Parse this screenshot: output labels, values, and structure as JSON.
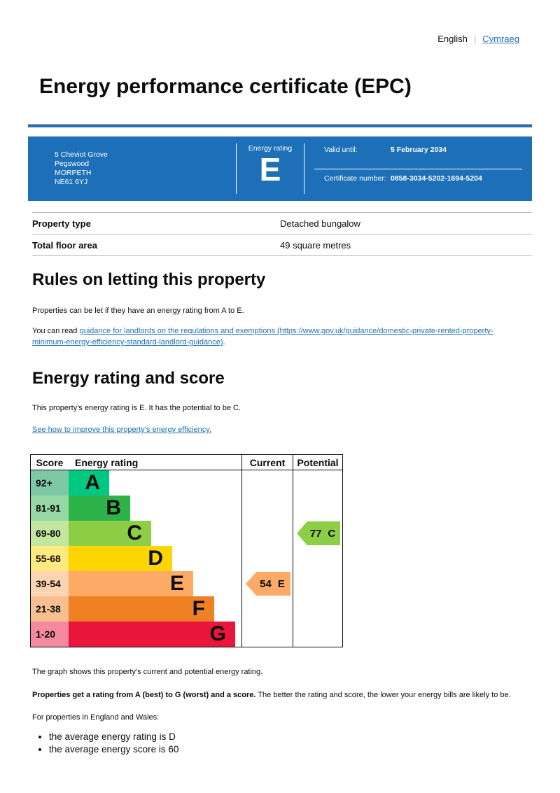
{
  "header": {
    "language_english": "English",
    "divider": "|",
    "language_cymraeg": "Cymraeg"
  },
  "title": "Energy performance certificate (EPC)",
  "banner": {
    "background": "#1d70b8",
    "address_lines": [
      "5 Cheviot Grove",
      "Pegswood",
      "MORPETH",
      "NE61 6YJ"
    ],
    "energy_rating_label": "Energy rating",
    "energy_rating_value": "E",
    "valid_until_label": "Valid until:",
    "valid_until_value": "5 February 2034",
    "certificate_number_label": "Certificate number:",
    "certificate_number_value": "0858-3034-5202-1694-5204"
  },
  "summary": {
    "rows": [
      {
        "label": "Property type",
        "value": "Detached bungalow"
      },
      {
        "label": "Total floor area",
        "value": "49 square metres"
      }
    ]
  },
  "rules_section": {
    "heading": "Rules on letting this property",
    "paragraph1": "Properties can be let if they have an energy rating from A to E.",
    "paragraph2_prefix": "You can read ",
    "link_text": "guidance for landlords on the regulations and exemptions (https://www.gov.uk/guidance/domestic-private-rented-property-minimum-energy-efficiency-standard-landlord-guidance)",
    "paragraph2_suffix": "."
  },
  "rating_section": {
    "heading": "Energy rating and score",
    "paragraph1": "This property's energy rating is E. It has the potential to be C.",
    "improve_link": "See how to improve this property's energy efficiency."
  },
  "chart_data": {
    "type": "bar",
    "title": "EPC energy rating bands",
    "columns": [
      "Score",
      "Energy rating",
      "Current",
      "Potential"
    ],
    "bands": [
      {
        "score_range": "92+",
        "letter": "A",
        "color": "#00c781",
        "score_bg": "#7fc8a5",
        "width_frac": 0.235
      },
      {
        "score_range": "81-91",
        "letter": "B",
        "color": "#2eb34a",
        "score_bg": "#96d9a4",
        "width_frac": 0.356
      },
      {
        "score_range": "69-80",
        "letter": "C",
        "color": "#8dce46",
        "score_bg": "#c3e6a0",
        "width_frac": 0.478
      },
      {
        "score_range": "55-68",
        "letter": "D",
        "color": "#ffd500",
        "score_bg": "#ffea7f",
        "width_frac": 0.599
      },
      {
        "score_range": "39-54",
        "letter": "E",
        "color": "#fcaa65",
        "score_bg": "#fdd4b2",
        "width_frac": 0.721
      },
      {
        "score_range": "21-38",
        "letter": "F",
        "color": "#ef8023",
        "score_bg": "#f7bf90",
        "width_frac": 0.842
      },
      {
        "score_range": "1-20",
        "letter": "G",
        "color": "#e9153b",
        "score_bg": "#f48a9d",
        "width_frac": 0.964
      }
    ],
    "current": {
      "score": "54",
      "letter": "E"
    },
    "potential": {
      "score": "77",
      "letter": "C"
    }
  },
  "chart_caption": "The graph shows this property's current and potential energy rating.",
  "explainer": {
    "bold": "Properties get a rating from A (best) to G (worst) and a score.",
    "rest": " The better the rating and score, the lower your energy bills are likely to be.",
    "intro": "For properties in England and Wales:",
    "bullets": [
      "the average energy rating is D",
      "the average energy score is 60"
    ]
  }
}
